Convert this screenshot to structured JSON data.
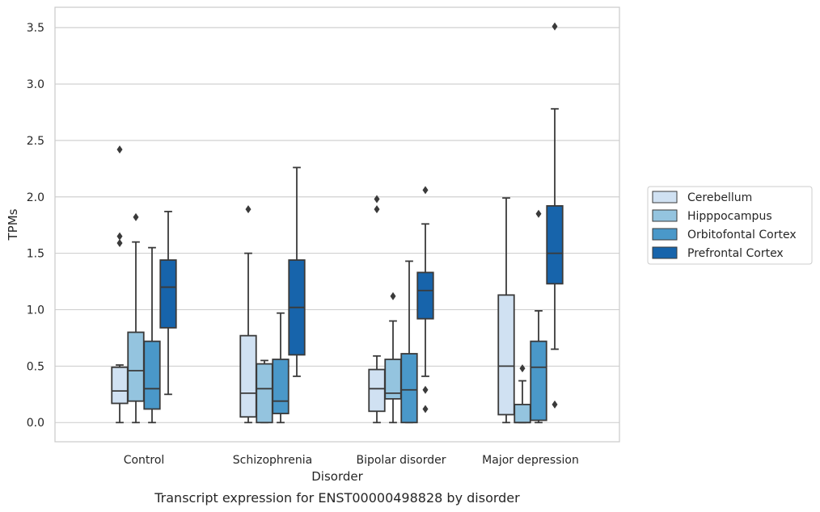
{
  "caption": "Transcript expression for ENST00000498828 by disorder",
  "chart_data": {
    "type": "boxplot",
    "xlabel": "Disorder",
    "ylabel": "TPMs",
    "ylim": [
      -0.17,
      3.68
    ],
    "yticks": [
      0.0,
      0.5,
      1.0,
      1.5,
      2.0,
      2.5,
      3.0,
      3.5
    ],
    "ytick_labels": [
      "0.0",
      "0.5",
      "1.0",
      "1.5",
      "2.0",
      "2.5",
      "3.0",
      "3.5"
    ],
    "grid": true,
    "legend_position": "right",
    "categories": [
      "Control",
      "Schizophrenia",
      "Bipolar disorder",
      "Major depression"
    ],
    "series": [
      {
        "name": "Cerebellum",
        "color": "#d0e1f2",
        "boxes": [
          {
            "whislo": 0.0,
            "q1": 0.17,
            "med": 0.28,
            "q3": 0.49,
            "whishi": 0.51,
            "fliers": [
              1.59,
              1.65,
              2.42
            ]
          },
          {
            "whislo": 0.0,
            "q1": 0.05,
            "med": 0.26,
            "q3": 0.77,
            "whishi": 1.5,
            "fliers": [
              1.89
            ]
          },
          {
            "whislo": 0.0,
            "q1": 0.1,
            "med": 0.3,
            "q3": 0.47,
            "whishi": 0.59,
            "fliers": [
              1.89,
              1.98
            ]
          },
          {
            "whislo": 0.0,
            "q1": 0.07,
            "med": 0.5,
            "q3": 1.13,
            "whishi": 1.99,
            "fliers": []
          }
        ]
      },
      {
        "name": "Hipppocampus",
        "color": "#94c4df",
        "boxes": [
          {
            "whislo": 0.0,
            "q1": 0.19,
            "med": 0.46,
            "q3": 0.8,
            "whishi": 1.6,
            "fliers": [
              1.82
            ]
          },
          {
            "whislo": 0.0,
            "q1": 0.0,
            "med": 0.3,
            "q3": 0.52,
            "whishi": 0.55,
            "fliers": []
          },
          {
            "whislo": 0.0,
            "q1": 0.21,
            "med": 0.26,
            "q3": 0.56,
            "whishi": 0.9,
            "fliers": [
              1.12
            ]
          },
          {
            "whislo": 0.0,
            "q1": 0.0,
            "med": 0.0,
            "q3": 0.16,
            "whishi": 0.37,
            "fliers": [
              0.48
            ]
          }
        ]
      },
      {
        "name": "Orbitofontal Cortex",
        "color": "#4a98c9",
        "boxes": [
          {
            "whislo": 0.0,
            "q1": 0.12,
            "med": 0.3,
            "q3": 0.72,
            "whishi": 1.55,
            "fliers": []
          },
          {
            "whislo": 0.0,
            "q1": 0.08,
            "med": 0.19,
            "q3": 0.56,
            "whishi": 0.97,
            "fliers": []
          },
          {
            "whislo": 0.0,
            "q1": 0.0,
            "med": 0.29,
            "q3": 0.61,
            "whishi": 1.43,
            "fliers": []
          },
          {
            "whislo": 0.0,
            "q1": 0.02,
            "med": 0.49,
            "q3": 0.72,
            "whishi": 0.99,
            "fliers": [
              1.85
            ]
          }
        ]
      },
      {
        "name": "Prefrontal Cortex",
        "color": "#1764ab",
        "boxes": [
          {
            "whislo": 0.25,
            "q1": 0.84,
            "med": 1.2,
            "q3": 1.44,
            "whishi": 1.87,
            "fliers": []
          },
          {
            "whislo": 0.41,
            "q1": 0.6,
            "med": 1.02,
            "q3": 1.44,
            "whishi": 2.26,
            "fliers": []
          },
          {
            "whislo": 0.41,
            "q1": 0.92,
            "med": 1.17,
            "q3": 1.33,
            "whishi": 1.76,
            "fliers": [
              0.12,
              0.29,
              2.06
            ]
          },
          {
            "whislo": 0.65,
            "q1": 1.23,
            "med": 1.5,
            "q3": 1.92,
            "whishi": 2.78,
            "fliers": [
              0.16,
              3.51
            ]
          }
        ]
      }
    ]
  }
}
